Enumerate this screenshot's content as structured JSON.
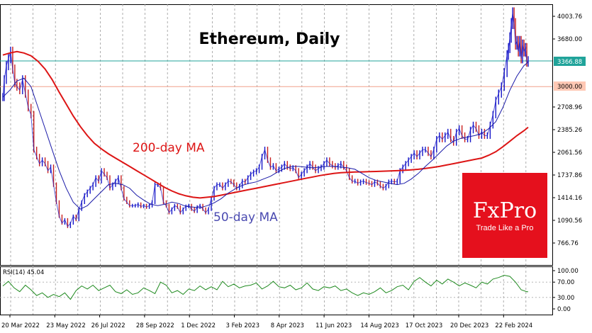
{
  "chart_data": [
    {
      "type": "line",
      "title": "Ethereum, Daily",
      "xlabel": "",
      "ylabel": "",
      "ylim": [
        580,
        4200
      ],
      "grid": "vertical dashed",
      "x_ticks": [
        "20 Mar 2022",
        "23 May 2022",
        "26 Jul 2022",
        "28 Sep 2022",
        "1 Dec 2022",
        "3 Feb 2023",
        "8 Apr 2023",
        "11 Jun 2023",
        "14 Aug 2023",
        "17 Oct 2023",
        "20 Dec 2023",
        "22 Feb 2024"
      ],
      "y_ticks": [
        4003.76,
        3680.0,
        3366.88,
        3000.0,
        2708.96,
        2385.26,
        2061.56,
        1737.86,
        1414.16,
        1090.56,
        766.76
      ],
      "y_tick_labels": [
        "4003.76",
        "3680.00",
        "3366.88",
        "3000.00",
        "2708.96",
        "2385.26",
        "2061.56",
        "1737.86",
        "1414.16",
        "1090.56",
        "766.76"
      ],
      "current_price": 3366.88,
      "current_price_label": "3366.88",
      "level_line": 3000.0,
      "level_line_label": "3000.00",
      "price_color": "#1515c8",
      "price_down_color": "#c81e1e",
      "series": [
        {
          "name": "Price",
          "color": "#1515c8",
          "x": [
            0,
            2,
            5,
            8,
            11,
            14,
            17,
            20,
            24,
            28,
            32,
            36,
            40,
            44,
            48,
            52,
            56,
            60,
            64,
            68,
            72,
            76,
            80,
            84,
            88,
            92,
            96,
            100,
            104,
            108,
            112,
            116,
            120,
            124,
            128,
            132,
            136,
            140,
            144,
            148,
            152,
            156,
            160,
            164,
            168,
            172,
            176,
            180,
            184,
            188,
            192,
            196,
            200,
            204,
            208,
            212,
            216,
            220,
            224,
            228,
            232,
            236,
            240,
            244,
            248,
            252,
            256,
            260,
            264,
            268,
            272,
            276,
            280,
            284,
            288,
            292,
            296,
            300,
            304,
            308,
            312,
            316,
            320,
            324,
            328,
            332,
            336,
            340,
            344,
            348,
            352,
            356,
            360,
            364,
            368,
            372,
            376,
            380,
            384,
            388,
            392,
            396,
            400,
            404,
            408,
            412,
            416,
            420,
            424,
            428,
            432,
            436,
            440,
            444,
            448,
            452,
            456,
            460,
            464,
            468,
            472,
            476,
            480,
            484,
            488,
            492,
            496,
            500,
            504,
            508,
            512,
            516,
            520,
            524,
            528,
            532,
            536,
            540,
            544,
            548,
            552,
            556,
            560,
            564,
            568,
            572,
            576,
            580,
            584,
            588,
            592,
            596,
            600,
            604,
            608,
            612,
            616,
            620,
            624,
            628,
            632,
            636,
            640,
            644,
            648,
            652,
            656,
            660,
            664,
            668,
            672,
            676,
            680,
            684,
            688,
            692,
            696,
            700,
            704,
            708,
            712,
            716,
            718,
            720,
            722,
            724,
            726,
            728,
            730,
            732,
            734,
            736,
            738,
            740,
            742,
            744,
            746
          ],
          "values": [
            2850,
            3100,
            3300,
            3400,
            3500,
            3250,
            3050,
            3000,
            2950,
            3100,
            2900,
            2700,
            2600,
            2100,
            2000,
            1900,
            1950,
            1900,
            1800,
            1850,
            1600,
            1350,
            1150,
            1050,
            1100,
            1000,
            1050,
            1150,
            1100,
            1250,
            1350,
            1450,
            1500,
            1550,
            1600,
            1700,
            1650,
            1800,
            1750,
            1700,
            1550,
            1600,
            1650,
            1700,
            1550,
            1400,
            1350,
            1300,
            1300,
            1300,
            1320,
            1290,
            1300,
            1280,
            1300,
            1350,
            1600,
            1600,
            1550,
            1350,
            1300,
            1200,
            1250,
            1300,
            1280,
            1200,
            1250,
            1290,
            1300,
            1250,
            1220,
            1280,
            1300,
            1250,
            1200,
            1250,
            1400,
            1550,
            1600,
            1600,
            1550,
            1600,
            1650,
            1640,
            1600,
            1550,
            1580,
            1650,
            1640,
            1700,
            1750,
            1780,
            1800,
            1850,
            2000,
            2100,
            1950,
            1850,
            1870,
            1800,
            1820,
            1850,
            1900,
            1850,
            1830,
            1840,
            1800,
            1700,
            1750,
            1800,
            1850,
            1900,
            1850,
            1800,
            1830,
            1850,
            1900,
            1950,
            1900,
            1870,
            1850,
            1870,
            1900,
            1850,
            1800,
            1700,
            1650,
            1650,
            1620,
            1640,
            1650,
            1630,
            1620,
            1600,
            1640,
            1620,
            1580,
            1550,
            1580,
            1640,
            1650,
            1640,
            1650,
            1800,
            1850,
            1900,
            1950,
            2000,
            2050,
            2000,
            2050,
            2100,
            2100,
            2050,
            2000,
            2100,
            2250,
            2300,
            2250,
            2300,
            2350,
            2250,
            2200,
            2350,
            2400,
            2300,
            2250,
            2250,
            2380,
            2450,
            2400,
            2300,
            2350,
            2300,
            2300,
            2450,
            2600,
            2800,
            2900,
            3000,
            3200,
            3450,
            3550,
            3700,
            3900,
            4050,
            3900,
            3600,
            3650,
            3500,
            3650,
            3400,
            3600,
            3500,
            3550,
            3350,
            3366.88
          ]
        },
        {
          "name": "50-day MA",
          "color": "#1a1aa8",
          "x": [
            0,
            10,
            20,
            30,
            40,
            50,
            60,
            70,
            80,
            90,
            100,
            110,
            120,
            130,
            140,
            150,
            160,
            170,
            180,
            190,
            200,
            210,
            220,
            230,
            240,
            250,
            260,
            270,
            280,
            290,
            300,
            310,
            320,
            330,
            340,
            350,
            360,
            370,
            380,
            390,
            400,
            410,
            420,
            430,
            440,
            450,
            460,
            470,
            480,
            490,
            500,
            510,
            520,
            530,
            540,
            550,
            560,
            570,
            580,
            590,
            600,
            610,
            620,
            630,
            640,
            650,
            660,
            670,
            680,
            690,
            700,
            710,
            720,
            730,
            740,
            746
          ],
          "values": [
            2850,
            2950,
            3080,
            3120,
            3000,
            2700,
            2400,
            2100,
            1800,
            1550,
            1350,
            1250,
            1300,
            1400,
            1500,
            1600,
            1620,
            1600,
            1550,
            1450,
            1380,
            1320,
            1300,
            1320,
            1350,
            1330,
            1290,
            1280,
            1270,
            1300,
            1340,
            1400,
            1480,
            1540,
            1590,
            1620,
            1640,
            1680,
            1720,
            1780,
            1830,
            1860,
            1860,
            1850,
            1840,
            1850,
            1860,
            1860,
            1850,
            1840,
            1820,
            1760,
            1700,
            1660,
            1640,
            1620,
            1600,
            1620,
            1680,
            1760,
            1860,
            1950,
            2050,
            2150,
            2220,
            2260,
            2280,
            2300,
            2330,
            2400,
            2500,
            2700,
            2950,
            3150,
            3300,
            3350
          ]
        },
        {
          "name": "200-day MA",
          "color": "#dd1515",
          "x": [
            0,
            10,
            20,
            30,
            40,
            50,
            60,
            70,
            80,
            90,
            100,
            110,
            120,
            130,
            140,
            150,
            160,
            170,
            180,
            190,
            200,
            210,
            220,
            230,
            240,
            250,
            260,
            270,
            280,
            290,
            300,
            310,
            320,
            330,
            340,
            350,
            360,
            370,
            380,
            390,
            400,
            410,
            420,
            430,
            440,
            450,
            460,
            470,
            480,
            490,
            500,
            510,
            520,
            530,
            540,
            550,
            560,
            570,
            580,
            590,
            600,
            610,
            620,
            630,
            640,
            650,
            660,
            670,
            680,
            690,
            700,
            710,
            720,
            730,
            740,
            746
          ],
          "values": [
            3450,
            3480,
            3500,
            3480,
            3440,
            3360,
            3250,
            3100,
            2920,
            2750,
            2580,
            2430,
            2300,
            2190,
            2110,
            2040,
            1980,
            1920,
            1860,
            1800,
            1740,
            1680,
            1620,
            1560,
            1510,
            1470,
            1440,
            1420,
            1410,
            1420,
            1430,
            1450,
            1470,
            1490,
            1510,
            1530,
            1550,
            1570,
            1590,
            1610,
            1630,
            1650,
            1670,
            1690,
            1710,
            1730,
            1745,
            1760,
            1770,
            1775,
            1780,
            1782,
            1785,
            1788,
            1792,
            1796,
            1800,
            1805,
            1812,
            1820,
            1832,
            1845,
            1860,
            1880,
            1900,
            1920,
            1940,
            1960,
            1980,
            2020,
            2070,
            2140,
            2220,
            2300,
            2370,
            2420
          ]
        }
      ],
      "annotations": [
        {
          "text": "200-day MA",
          "color": "#dd1515"
        },
        {
          "text": "50-day MA",
          "color": "#4a4ab0"
        }
      ]
    },
    {
      "type": "line",
      "title": "RSI(14) 45.04",
      "ylim": [
        0,
        100
      ],
      "y_ticks": [
        100,
        70,
        30,
        0
      ],
      "y_tick_labels": [
        "100.00",
        "70.00",
        "30.00",
        "0.00"
      ],
      "series": [
        {
          "name": "RSI(14)",
          "color": "#1f8a1f",
          "x": [
            0,
            8,
            16,
            24,
            32,
            40,
            48,
            56,
            64,
            72,
            80,
            88,
            96,
            104,
            112,
            120,
            128,
            136,
            144,
            152,
            160,
            168,
            176,
            184,
            192,
            200,
            208,
            216,
            224,
            232,
            240,
            248,
            256,
            264,
            272,
            280,
            288,
            296,
            304,
            312,
            320,
            328,
            336,
            344,
            352,
            360,
            368,
            376,
            384,
            392,
            400,
            408,
            416,
            424,
            432,
            440,
            448,
            456,
            464,
            472,
            480,
            488,
            496,
            504,
            512,
            520,
            528,
            536,
            544,
            552,
            560,
            568,
            576,
            584,
            592,
            600,
            608,
            616,
            624,
            632,
            640,
            648,
            656,
            664,
            672,
            680,
            688,
            696,
            704,
            712,
            720,
            728,
            736,
            744,
            746
          ],
          "values": [
            60,
            72,
            55,
            45,
            62,
            50,
            35,
            42,
            30,
            38,
            32,
            42,
            25,
            48,
            60,
            52,
            62,
            48,
            55,
            62,
            45,
            40,
            50,
            38,
            42,
            55,
            48,
            40,
            70,
            62,
            42,
            48,
            38,
            52,
            48,
            60,
            50,
            58,
            50,
            72,
            58,
            65,
            55,
            60,
            62,
            68,
            52,
            60,
            72,
            58,
            55,
            62,
            50,
            55,
            68,
            52,
            48,
            58,
            55,
            60,
            48,
            52,
            42,
            35,
            42,
            38,
            45,
            55,
            42,
            48,
            58,
            62,
            50,
            72,
            82,
            70,
            60,
            75,
            65,
            78,
            70,
            60,
            68,
            62,
            55,
            70,
            65,
            78,
            82,
            88,
            85,
            70,
            50,
            45,
            45.04
          ]
        }
      ]
    }
  ],
  "logo": {
    "brand": "FxPro",
    "tagline": "Trade Like a Pro",
    "color": "#e5101d"
  }
}
